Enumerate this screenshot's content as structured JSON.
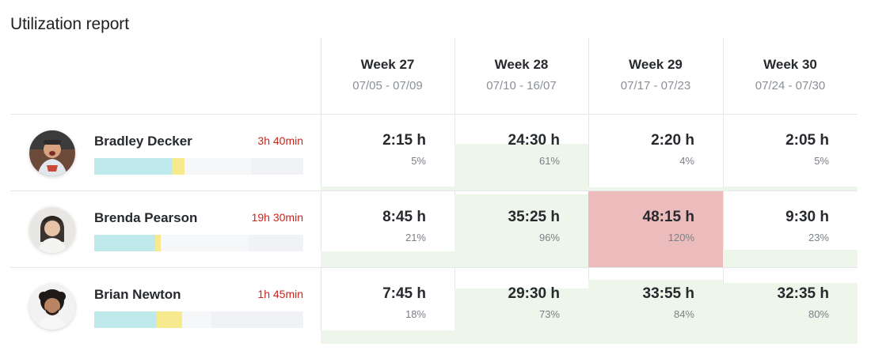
{
  "title": "Utilization report",
  "weeks": [
    {
      "name": "Week 27",
      "dates": "07/05 - 07/09"
    },
    {
      "name": "Week 28",
      "dates": "07/10 - 16/07"
    },
    {
      "name": "Week 29",
      "dates": "07/17 - 07/23"
    },
    {
      "name": "Week 30",
      "dates": "07/24 - 07/30"
    }
  ],
  "people": [
    {
      "name": "Bradley Decker",
      "hours": "3h 40min",
      "bar": {
        "primary": 0.37,
        "secondary": 0.06,
        "light": 0.32
      },
      "cells": [
        {
          "value": "2:15 h",
          "pct": "5%",
          "level": 0.05
        },
        {
          "value": "24:30 h",
          "pct": "61%",
          "level": 0.61
        },
        {
          "value": "2:20 h",
          "pct": "4%",
          "level": 0.04
        },
        {
          "value": "2:05 h",
          "pct": "5%",
          "level": 0.05
        }
      ]
    },
    {
      "name": "Brenda Pearson",
      "hours": "19h 30min",
      "bar": {
        "primary": 0.29,
        "secondary": 0.03,
        "light": 0.42
      },
      "cells": [
        {
          "value": "8:45 h",
          "pct": "21%",
          "level": 0.21
        },
        {
          "value": "35:25 h",
          "pct": "96%",
          "level": 0.96
        },
        {
          "value": "48:15 h",
          "pct": "120%",
          "level": 1.2
        },
        {
          "value": "9:30 h",
          "pct": "23%",
          "level": 0.23
        }
      ]
    },
    {
      "name": "Brian Newton",
      "hours": "1h 45min",
      "bar": {
        "primary": 0.3,
        "secondary": 0.12,
        "light": 0.14
      },
      "cells": [
        {
          "value": "7:45 h",
          "pct": "18%",
          "level": 0.18
        },
        {
          "value": "29:30 h",
          "pct": "73%",
          "level": 0.73
        },
        {
          "value": "33:55 h",
          "pct": "84%",
          "level": 0.84
        },
        {
          "value": "32:35 h",
          "pct": "80%",
          "level": 0.8
        }
      ]
    }
  ],
  "colors": {
    "normal_fill": "#eef5ea",
    "over_fill": "#ecbcbc",
    "hours_text": "#c7261f",
    "bar_primary": "#bfe9ea",
    "bar_secondary": "#f7ea8e"
  }
}
